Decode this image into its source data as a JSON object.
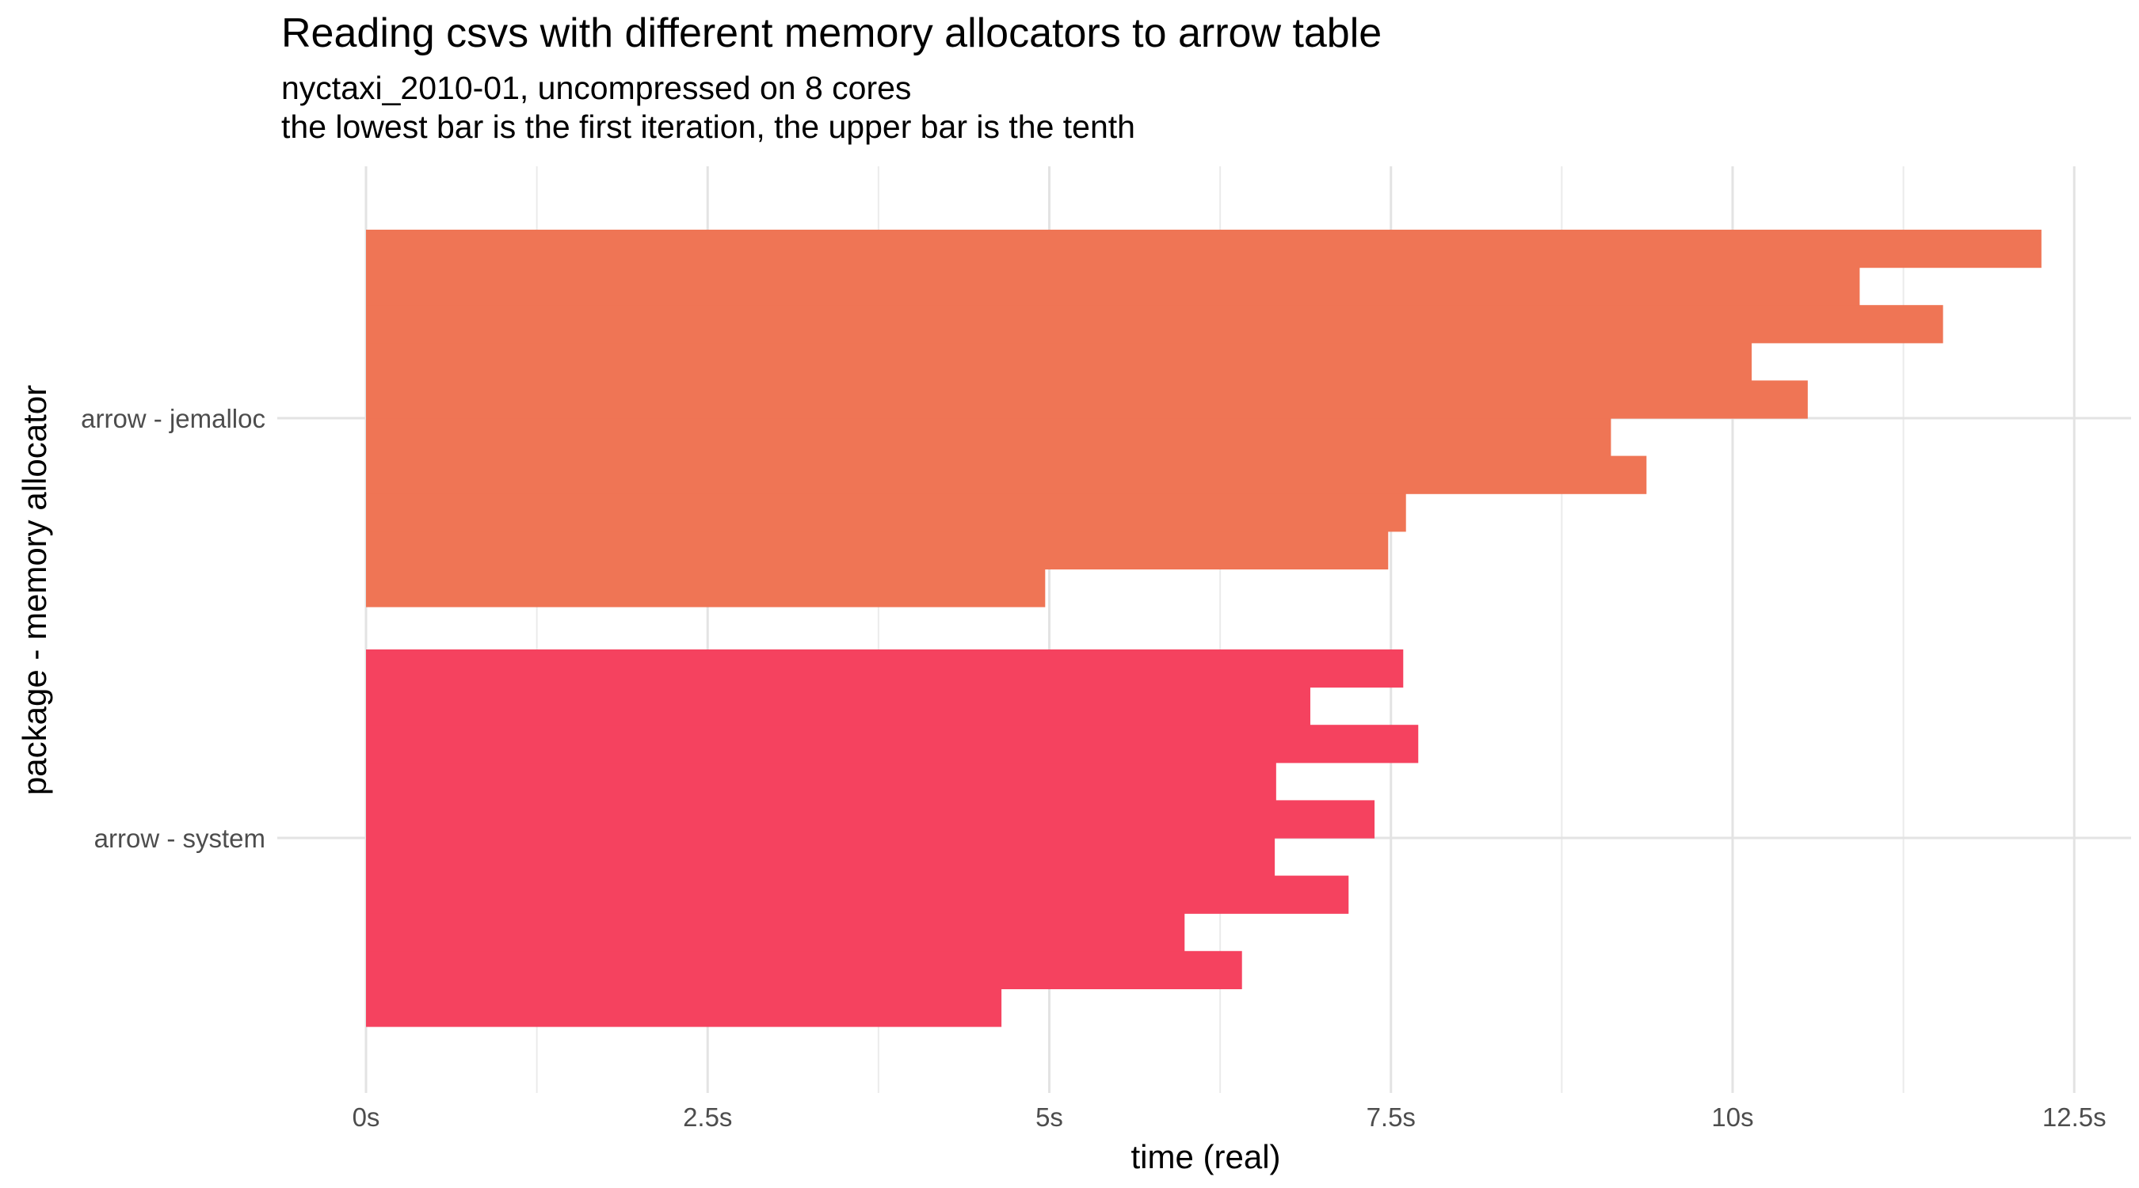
{
  "chart_data": {
    "type": "bar",
    "orientation": "horizontal",
    "title": "Reading csvs with different memory allocators to arrow table",
    "subtitle": "nyctaxi_2010-01, uncompressed on 8 cores",
    "subtitle2": "the lowest bar is the first iteration, the upper bar is the tenth",
    "xlabel": "time (real)",
    "ylabel": "package - memory allocator",
    "xlim": [
      0,
      12.9
    ],
    "x_ticks": [
      0,
      2.5,
      5,
      7.5,
      10,
      12.5
    ],
    "x_tick_labels": [
      "0s",
      "2.5s",
      "5s",
      "7.5s",
      "10s",
      "12.5s"
    ],
    "grid": true,
    "legend": "none",
    "categories": [
      "arrow - system",
      "arrow - jemalloc"
    ],
    "series": [
      {
        "category": "arrow - system",
        "color": "#F5425F",
        "iterations": [
          4.65,
          6.41,
          5.99,
          7.19,
          6.65,
          7.38,
          6.66,
          7.7,
          6.91,
          7.59
        ]
      },
      {
        "category": "arrow - jemalloc",
        "color": "#EF7555",
        "iterations": [
          4.97,
          7.48,
          7.61,
          9.37,
          9.11,
          10.55,
          10.14,
          11.54,
          10.93,
          12.26
        ]
      }
    ]
  }
}
